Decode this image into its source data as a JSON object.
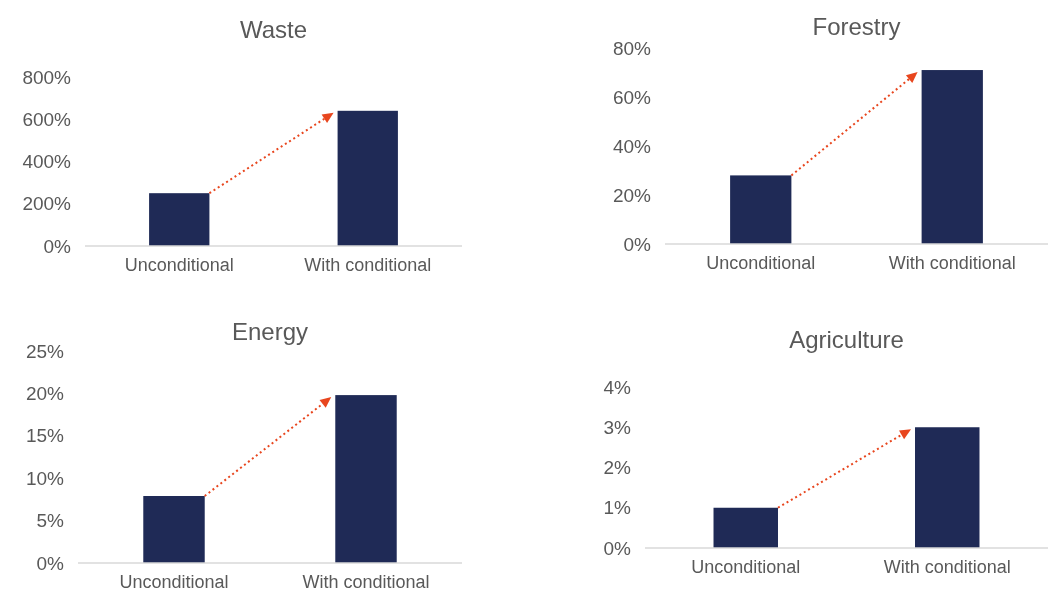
{
  "chart_data": [
    {
      "type": "bar",
      "title": "Waste",
      "categories": [
        "Unconditional",
        "With conditional"
      ],
      "values": [
        250,
        640
      ],
      "color": "#1f2a56",
      "ylim": [
        0,
        800
      ],
      "yticks": [
        {
          "value": 0,
          "label": "0%"
        },
        {
          "value": 200,
          "label": "200%"
        },
        {
          "value": 400,
          "label": "400%"
        },
        {
          "value": 600,
          "label": "600%"
        },
        {
          "value": 800,
          "label": "800%"
        }
      ],
      "grid": false
    },
    {
      "type": "bar",
      "title": "Forestry",
      "categories": [
        "Unconditional",
        "With conditional"
      ],
      "values": [
        28,
        71
      ],
      "color": "#1f2a56",
      "ylim": [
        0,
        80
      ],
      "yticks": [
        {
          "value": 0,
          "label": "0%"
        },
        {
          "value": 20,
          "label": "20%"
        },
        {
          "value": 40,
          "label": "40%"
        },
        {
          "value": 60,
          "label": "60%"
        },
        {
          "value": 80,
          "label": "80%"
        }
      ],
      "grid": false
    },
    {
      "type": "bar",
      "title": "Energy",
      "categories": [
        "Unconditional",
        "With conditional"
      ],
      "values": [
        7.9,
        19.8
      ],
      "color": "#1f2a56",
      "ylim": [
        0,
        25
      ],
      "yticks": [
        {
          "value": 0,
          "label": "0%"
        },
        {
          "value": 5,
          "label": "5%"
        },
        {
          "value": 10,
          "label": "10%"
        },
        {
          "value": 15,
          "label": "15%"
        },
        {
          "value": 20,
          "label": "20%"
        },
        {
          "value": 25,
          "label": "25%"
        }
      ],
      "grid": false
    },
    {
      "type": "bar",
      "title": "Agriculture",
      "categories": [
        "Unconditional",
        "With conditional"
      ],
      "values": [
        1.0,
        3.0
      ],
      "color": "#1f2a56",
      "ylim": [
        0,
        4
      ],
      "yticks": [
        {
          "value": 0,
          "label": "0%"
        },
        {
          "value": 1,
          "label": "1%"
        },
        {
          "value": 2,
          "label": "2%"
        },
        {
          "value": 3,
          "label": "3%"
        },
        {
          "value": 4,
          "label": "4%"
        }
      ],
      "grid": false
    }
  ]
}
